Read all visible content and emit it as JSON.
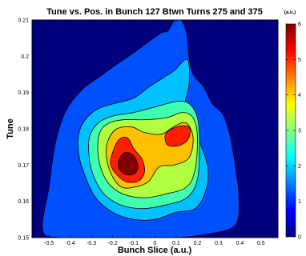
{
  "chart_data": {
    "type": "heatmap",
    "subtype": "filled-contour",
    "title": "Tune vs. Pos. in Bunch 127 Btwn Turns 275 and 375",
    "xlabel": "Bunch Slice (a.u.)",
    "ylabel": "Tune",
    "xlim": [
      -0.58,
      0.58
    ],
    "ylim": [
      0.15,
      0.21
    ],
    "xticks": [
      "-0.5",
      "-0.4",
      "-0.3",
      "-0.2",
      "-0.1",
      "0",
      "0.1",
      "0.2",
      "0.3",
      "0.4",
      "0.5"
    ],
    "xtick_values": [
      -0.5,
      -0.4,
      -0.3,
      -0.2,
      -0.1,
      0,
      0.1,
      0.2,
      0.3,
      0.4,
      0.5
    ],
    "yticks": [
      "0.15",
      "0.16",
      "0.17",
      "0.18",
      "0.19",
      "0.2",
      "0.21"
    ],
    "ytick_values": [
      0.15,
      0.16,
      0.17,
      0.18,
      0.19,
      0.2,
      0.21
    ],
    "colorbar": {
      "label": "(a.u.)",
      "range": [
        0,
        6
      ],
      "ticks": [
        "0",
        "1",
        "2",
        "3",
        "4",
        "5",
        "6"
      ],
      "colormap": "jet"
    },
    "levels": [
      {
        "level": 0,
        "color": "#00007f"
      },
      {
        "level": 1,
        "color": "#0050ff"
      },
      {
        "level": 2,
        "color": "#00c0ff"
      },
      {
        "level": 3,
        "color": "#40ffb0"
      },
      {
        "level": 4,
        "color": "#b0ff40"
      },
      {
        "level": 5,
        "color": "#ffc000"
      },
      {
        "level": 6,
        "color": "#ff2000"
      },
      {
        "level": 7,
        "color": "#800000"
      }
    ],
    "contours": [
      {
        "level": 1,
        "points": [
          [
            -0.53,
            0.152
          ],
          [
            -0.5,
            0.164
          ],
          [
            -0.47,
            0.176
          ],
          [
            -0.42,
            0.185
          ],
          [
            -0.34,
            0.191
          ],
          [
            -0.27,
            0.194
          ],
          [
            -0.2,
            0.197
          ],
          [
            -0.1,
            0.201
          ],
          [
            -0.03,
            0.204
          ],
          [
            0.03,
            0.2065
          ],
          [
            0.06,
            0.207
          ],
          [
            0.1,
            0.2105
          ],
          [
            0.13,
            0.2095
          ],
          [
            0.15,
            0.206
          ],
          [
            0.16,
            0.2
          ],
          [
            0.18,
            0.195
          ],
          [
            0.23,
            0.1915
          ],
          [
            0.27,
            0.187
          ],
          [
            0.32,
            0.184
          ],
          [
            0.35,
            0.179
          ],
          [
            0.37,
            0.173
          ],
          [
            0.385,
            0.167
          ],
          [
            0.395,
            0.162
          ],
          [
            0.38,
            0.1535
          ],
          [
            0.25,
            0.151
          ],
          [
            0.1,
            0.15
          ],
          [
            -0.1,
            0.15
          ],
          [
            -0.3,
            0.15
          ],
          [
            -0.45,
            0.15
          ]
        ]
      },
      {
        "level": 2,
        "points": [
          [
            -0.36,
            0.1785
          ],
          [
            -0.33,
            0.1825
          ],
          [
            -0.27,
            0.1855
          ],
          [
            -0.19,
            0.187
          ],
          [
            -0.1,
            0.1885
          ],
          [
            -0.03,
            0.1915
          ],
          [
            0.05,
            0.1945
          ],
          [
            0.09,
            0.196
          ],
          [
            0.14,
            0.199
          ],
          [
            0.16,
            0.198
          ],
          [
            0.16,
            0.192
          ],
          [
            0.14,
            0.186
          ],
          [
            0.17,
            0.181
          ],
          [
            0.22,
            0.175
          ],
          [
            0.25,
            0.169
          ],
          [
            0.24,
            0.163
          ],
          [
            0.19,
            0.158
          ],
          [
            0.1,
            0.157
          ],
          [
            0,
            0.155
          ],
          [
            -0.1,
            0.155
          ],
          [
            -0.2,
            0.157
          ],
          [
            -0.28,
            0.161
          ],
          [
            -0.33,
            0.167
          ],
          [
            -0.36,
            0.173
          ]
        ]
      },
      {
        "level": 3,
        "points": [
          [
            -0.31,
            0.1775
          ],
          [
            -0.27,
            0.1815
          ],
          [
            -0.2,
            0.1835
          ],
          [
            -0.1,
            0.1845
          ],
          [
            0,
            0.186
          ],
          [
            0.1,
            0.1875
          ],
          [
            0.16,
            0.187
          ],
          [
            0.2,
            0.183
          ],
          [
            0.21,
            0.176
          ],
          [
            0.2,
            0.166
          ],
          [
            0.15,
            0.161
          ],
          [
            0.05,
            0.159
          ],
          [
            -0.06,
            0.158
          ],
          [
            -0.16,
            0.159
          ],
          [
            -0.24,
            0.162
          ],
          [
            -0.29,
            0.167
          ],
          [
            -0.31,
            0.172
          ]
        ]
      },
      {
        "level": 4,
        "points": [
          [
            -0.26,
            0.179
          ],
          [
            -0.22,
            0.1815
          ],
          [
            -0.15,
            0.1825
          ],
          [
            -0.05,
            0.1825
          ],
          [
            0.05,
            0.183
          ],
          [
            0.13,
            0.1845
          ],
          [
            0.18,
            0.183
          ],
          [
            0.2,
            0.178
          ],
          [
            0.19,
            0.169
          ],
          [
            0.15,
            0.164
          ],
          [
            0.05,
            0.162
          ],
          [
            -0.05,
            0.161
          ],
          [
            -0.15,
            0.162
          ],
          [
            -0.22,
            0.165
          ],
          [
            -0.26,
            0.17
          ],
          [
            -0.27,
            0.175
          ]
        ]
      },
      {
        "level": 5,
        "points": [
          [
            -0.22,
            0.177
          ],
          [
            -0.18,
            0.18
          ],
          [
            -0.11,
            0.1805
          ],
          [
            -0.05,
            0.179
          ],
          [
            0.03,
            0.1785
          ],
          [
            0.1,
            0.181
          ],
          [
            0.15,
            0.1815
          ],
          [
            0.18,
            0.1775
          ],
          [
            0.16,
            0.172
          ],
          [
            0.09,
            0.17
          ],
          [
            0.02,
            0.1695
          ],
          [
            -0.03,
            0.1655
          ],
          [
            -0.09,
            0.164
          ],
          [
            -0.16,
            0.164
          ],
          [
            -0.21,
            0.168
          ],
          [
            -0.23,
            0.173
          ]
        ]
      },
      {
        "level": 6,
        "points": [
          [
            -0.2,
            0.1735
          ],
          [
            -0.17,
            0.177
          ],
          [
            -0.13,
            0.1775
          ],
          [
            -0.1,
            0.1745
          ],
          [
            -0.06,
            0.1715
          ],
          [
            -0.05,
            0.168
          ],
          [
            -0.08,
            0.1655
          ],
          [
            -0.14,
            0.1655
          ],
          [
            -0.19,
            0.168
          ],
          [
            -0.21,
            0.1705
          ]
        ]
      },
      {
        "level": 6,
        "points": [
          [
            0.05,
            0.1785
          ],
          [
            0.1,
            0.1805
          ],
          [
            0.16,
            0.1805
          ],
          [
            0.16,
            0.1775
          ],
          [
            0.12,
            0.1755
          ],
          [
            0.06,
            0.1755
          ]
        ]
      },
      {
        "level": 7,
        "points": [
          [
            -0.17,
            0.1715
          ],
          [
            -0.14,
            0.1735
          ],
          [
            -0.1,
            0.1725
          ],
          [
            -0.08,
            0.1695
          ],
          [
            -0.1,
            0.1675
          ],
          [
            -0.14,
            0.1675
          ],
          [
            -0.17,
            0.169
          ]
        ]
      }
    ]
  }
}
